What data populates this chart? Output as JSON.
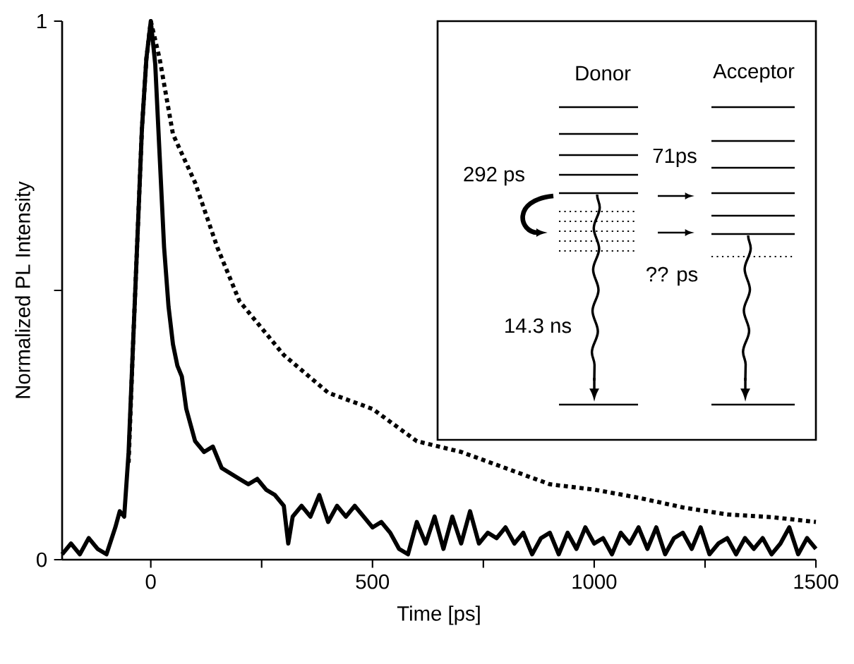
{
  "chart_data": {
    "type": "line",
    "xlabel": "Time [ps]",
    "ylabel": "Normalized PL Intensity",
    "xlim": [
      -200,
      1500
    ],
    "ylim": [
      0,
      1
    ],
    "xticks": [
      0,
      {
        "value": 250,
        "label": null
      },
      500,
      {
        "value": 750,
        "label": null
      },
      1000,
      {
        "value": 1250,
        "label": null
      },
      1500
    ],
    "yticks": [
      0,
      {
        "value": 0.5,
        "label": null
      },
      1
    ],
    "series": [
      {
        "color": "#000000",
        "line_style": "solid",
        "x": [
          -200,
          -180,
          -160,
          -140,
          -120,
          -100,
          -80,
          -70,
          -60,
          -50,
          -40,
          -30,
          -20,
          -10,
          0,
          10,
          20,
          30,
          40,
          50,
          60,
          70,
          80,
          90,
          100,
          120,
          140,
          160,
          180,
          200,
          220,
          240,
          260,
          280,
          300,
          310,
          320,
          340,
          360,
          380,
          400,
          420,
          440,
          460,
          480,
          500,
          520,
          540,
          560,
          580,
          600,
          620,
          640,
          660,
          680,
          700,
          720,
          740,
          760,
          780,
          800,
          820,
          840,
          860,
          880,
          900,
          920,
          940,
          960,
          980,
          1000,
          1020,
          1040,
          1060,
          1080,
          1100,
          1120,
          1140,
          1160,
          1180,
          1200,
          1220,
          1240,
          1260,
          1280,
          1300,
          1320,
          1340,
          1360,
          1380,
          1400,
          1420,
          1440,
          1460,
          1480,
          1500
        ],
        "values": [
          0.01,
          0.03,
          0.01,
          0.04,
          0.02,
          0.01,
          0.06,
          0.09,
          0.08,
          0.2,
          0.4,
          0.6,
          0.8,
          0.93,
          1.0,
          0.92,
          0.75,
          0.58,
          0.47,
          0.4,
          0.36,
          0.34,
          0.28,
          0.25,
          0.22,
          0.2,
          0.21,
          0.17,
          0.16,
          0.15,
          0.14,
          0.15,
          0.13,
          0.12,
          0.1,
          0.03,
          0.08,
          0.1,
          0.08,
          0.12,
          0.07,
          0.1,
          0.08,
          0.1,
          0.08,
          0.06,
          0.07,
          0.05,
          0.02,
          0.01,
          0.07,
          0.03,
          0.08,
          0.02,
          0.08,
          0.03,
          0.09,
          0.03,
          0.05,
          0.04,
          0.06,
          0.03,
          0.05,
          0.01,
          0.04,
          0.05,
          0.01,
          0.05,
          0.02,
          0.06,
          0.03,
          0.04,
          0.01,
          0.05,
          0.03,
          0.06,
          0.02,
          0.06,
          0.01,
          0.04,
          0.05,
          0.02,
          0.06,
          0.01,
          0.03,
          0.04,
          0.01,
          0.04,
          0.02,
          0.04,
          0.01,
          0.03,
          0.06,
          0.01,
          0.04,
          0.02
        ]
      },
      {
        "color": "#000000",
        "line_style": "dotted",
        "x": [
          -50,
          -40,
          -30,
          -20,
          -10,
          0,
          20,
          50,
          100,
          150,
          200,
          300,
          400,
          500,
          600,
          700,
          800,
          900,
          1000,
          1100,
          1200,
          1300,
          1400,
          1500
        ],
        "values": [
          0.18,
          0.4,
          0.6,
          0.8,
          0.93,
          1.0,
          0.93,
          0.79,
          0.7,
          0.58,
          0.48,
          0.38,
          0.31,
          0.28,
          0.22,
          0.2,
          0.17,
          0.14,
          0.13,
          0.115,
          0.097,
          0.084,
          0.079,
          0.07
        ]
      }
    ],
    "annotations": [
      "Donor",
      "Acceptor",
      "292 ps",
      "71ps",
      "?? ps",
      "14.3 ns"
    ]
  }
}
